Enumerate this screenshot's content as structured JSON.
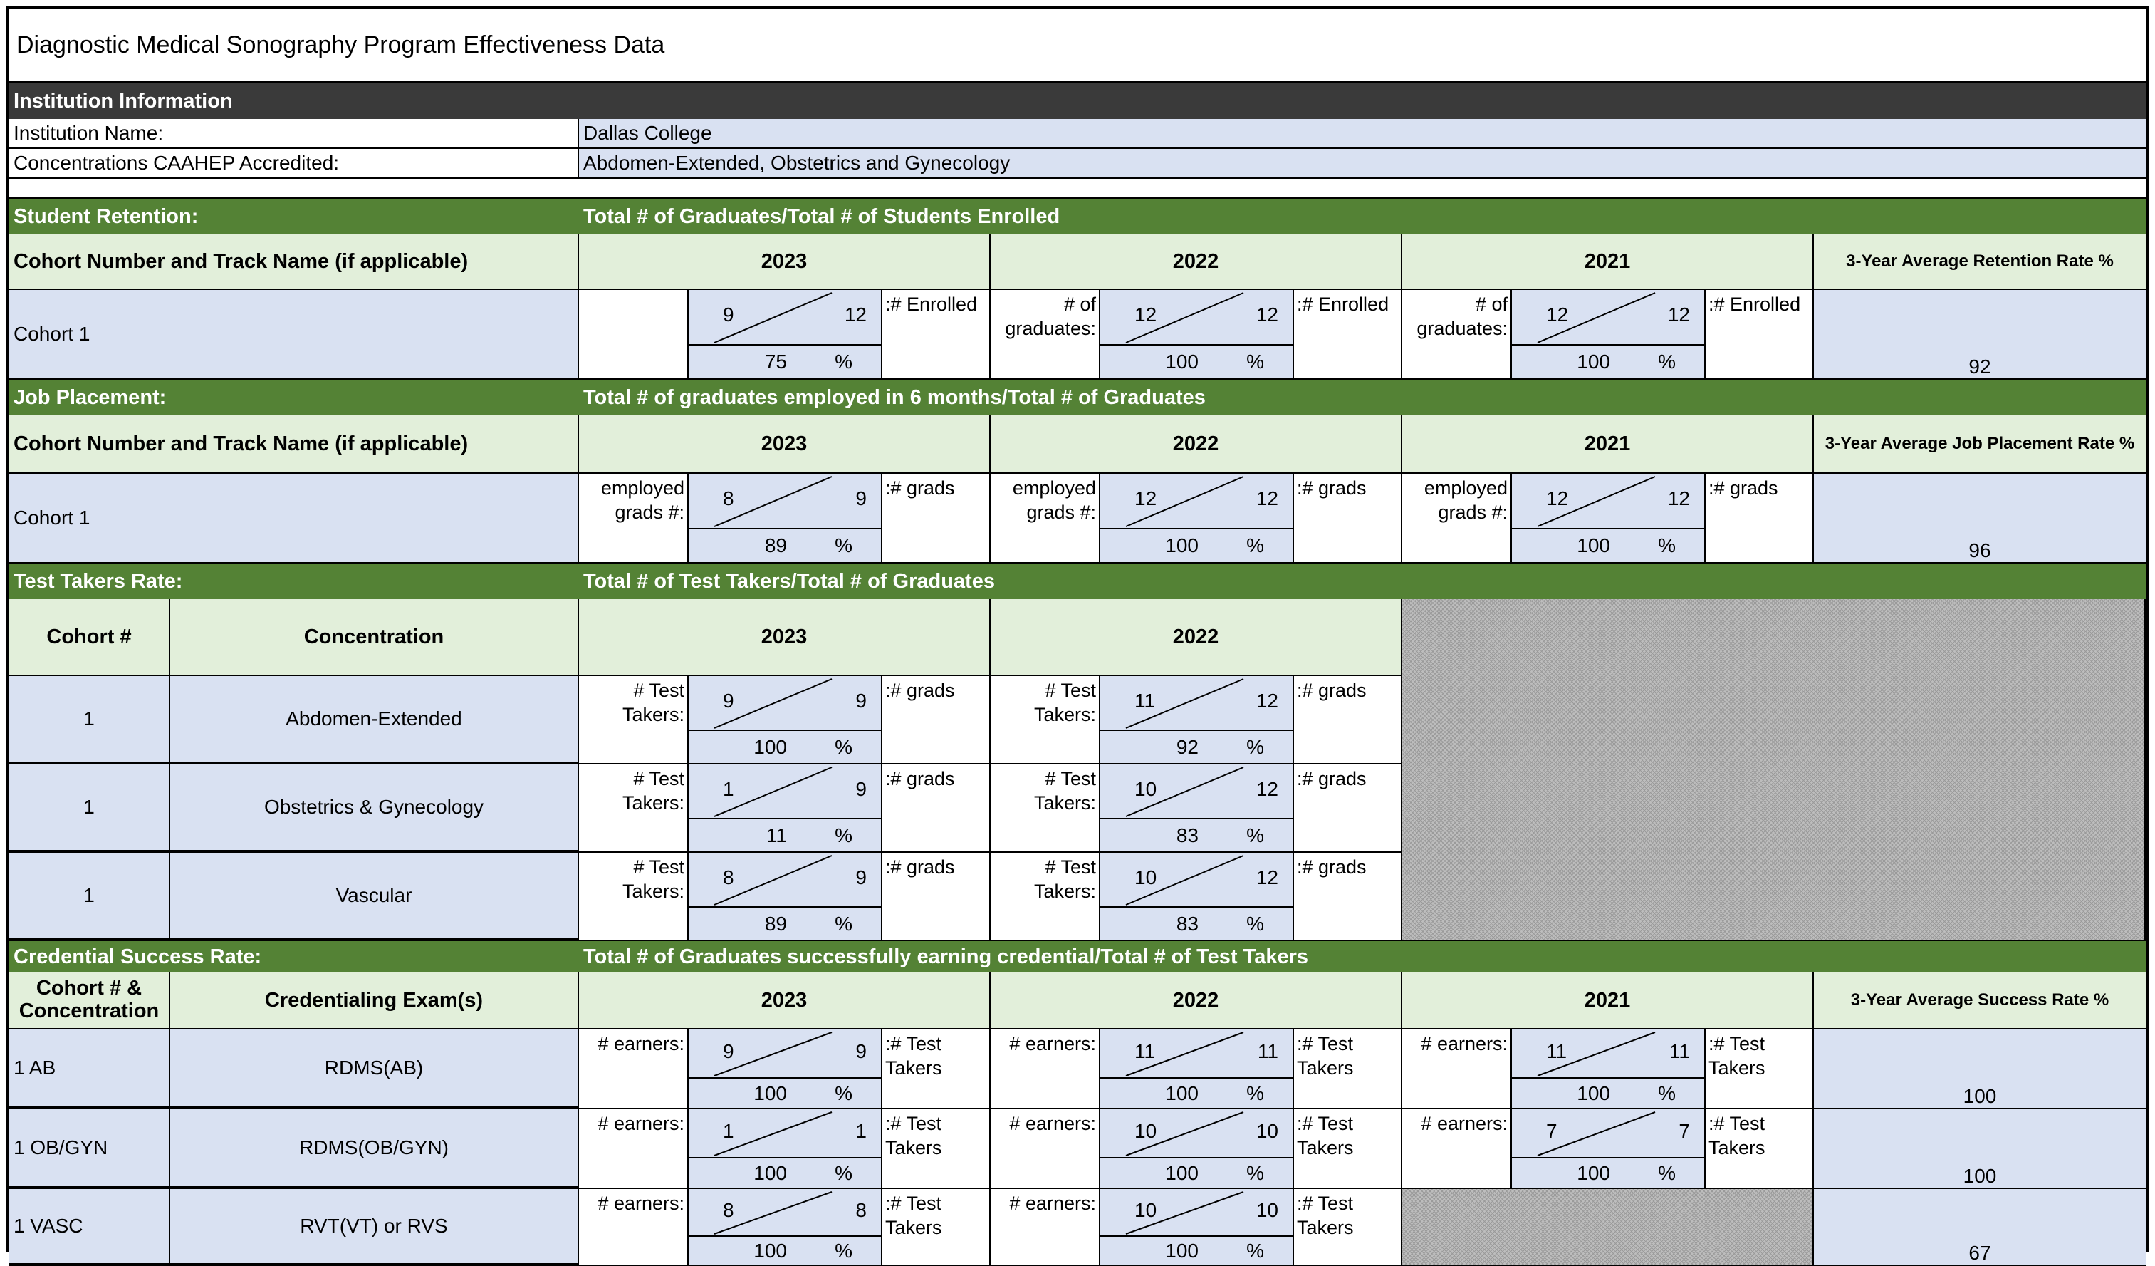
{
  "title": "Diagnostic Medical Sonography Program Effectiveness Data",
  "institution_section": "Institution Information",
  "institution_name_label": "Institution Name:",
  "institution_name": "Dallas College",
  "concentrations_label": "Concentrations CAAHEP Accredited:",
  "concentrations": "Abdomen-Extended, Obstetrics and Gynecology",
  "retention": {
    "label": "Student Retention:",
    "formula": "Total # of Graduates/Total # of Students Enrolled",
    "col_cohort": "Cohort Number and Track Name (if applicable)",
    "years": [
      "2023",
      "2022",
      "2021"
    ],
    "avg_label": "3-Year Average Retention Rate %",
    "rows": [
      {
        "cohort": "Cohort 1",
        "cells": [
          {
            "left": "",
            "num": "9",
            "den": "12",
            "pct": "75",
            "right": ":# Enrolled"
          },
          {
            "left": "# of graduates:",
            "num": "12",
            "den": "12",
            "pct": "100",
            "right": ":# Enrolled"
          },
          {
            "left": "# of graduates:",
            "num": "12",
            "den": "12",
            "pct": "100",
            "right": ":# Enrolled"
          }
        ],
        "avg": "92"
      }
    ]
  },
  "job": {
    "label": "Job Placement:",
    "formula": "Total # of graduates employed in 6 months/Total # of Graduates",
    "col_cohort": "Cohort Number and Track Name (if applicable)",
    "years": [
      "2023",
      "2022",
      "2021"
    ],
    "avg_label": "3-Year Average Job Placement Rate %",
    "rows": [
      {
        "cohort": "Cohort 1",
        "cells": [
          {
            "left": "employed grads #:",
            "num": "8",
            "den": "9",
            "pct": "89",
            "right": ":# grads"
          },
          {
            "left": "employed grads #:",
            "num": "12",
            "den": "12",
            "pct": "100",
            "right": ":# grads"
          },
          {
            "left": "employed grads #:",
            "num": "12",
            "den": "12",
            "pct": "100",
            "right": ":# grads"
          }
        ],
        "avg": "96"
      }
    ]
  },
  "test_takers": {
    "label": "Test Takers Rate:",
    "formula": "Total # of Test Takers/Total # of Graduates",
    "col_cohort": "Cohort #",
    "col_conc": "Concentration",
    "years": [
      "2023",
      "2022"
    ],
    "rows": [
      {
        "cohort": "1",
        "conc": "Abdomen-Extended",
        "cells": [
          {
            "left": "# Test Takers:",
            "num": "9",
            "den": "9",
            "pct": "100",
            "right": ":# grads"
          },
          {
            "left": "# Test Takers:",
            "num": "11",
            "den": "12",
            "pct": "92",
            "right": ":# grads"
          }
        ]
      },
      {
        "cohort": "1",
        "conc": "Obstetrics & Gynecology",
        "cells": [
          {
            "left": "# Test Takers:",
            "num": "1",
            "den": "9",
            "pct": "11",
            "right": ":# grads"
          },
          {
            "left": "# Test Takers:",
            "num": "10",
            "den": "12",
            "pct": "83",
            "right": ":# grads"
          }
        ]
      },
      {
        "cohort": "1",
        "conc": "Vascular",
        "cells": [
          {
            "left": "# Test Takers:",
            "num": "8",
            "den": "9",
            "pct": "89",
            "right": ":# grads"
          },
          {
            "left": "# Test Takers:",
            "num": "10",
            "den": "12",
            "pct": "83",
            "right": ":# grads"
          }
        ]
      }
    ]
  },
  "credential": {
    "label": "Credential Success Rate:",
    "formula": "Total # of Graduates successfully earning credential/Total # of Test Takers",
    "col_cohort": "Cohort # & Concentration",
    "col_exam": "Credentialing Exam(s)",
    "years": [
      "2023",
      "2022",
      "2021"
    ],
    "avg_label": "3-Year Average Success Rate %",
    "rows": [
      {
        "cohort": "1 AB",
        "exam": "RDMS(AB)",
        "cells": [
          {
            "left": "# earners:",
            "num": "9",
            "den": "9",
            "pct": "100",
            "right": ":# Test Takers"
          },
          {
            "left": "# earners:",
            "num": "11",
            "den": "11",
            "pct": "100",
            "right": ":# Test Takers"
          },
          {
            "left": "# earners:",
            "num": "11",
            "den": "11",
            "pct": "100",
            "right": ":# Test Takers"
          }
        ],
        "avg": "100"
      },
      {
        "cohort": "1 OB/GYN",
        "exam": "RDMS(OB/GYN)",
        "cells": [
          {
            "left": "# earners:",
            "num": "1",
            "den": "1",
            "pct": "100",
            "right": ":# Test Takers"
          },
          {
            "left": "# earners:",
            "num": "10",
            "den": "10",
            "pct": "100",
            "right": ":# Test Takers"
          },
          {
            "left": "# earners:",
            "num": "7",
            "den": "7",
            "pct": "100",
            "right": ":# Test Takers"
          }
        ],
        "avg": "100"
      },
      {
        "cohort": "1 VASC",
        "exam": "RVT(VT) or RVS",
        "cells": [
          {
            "left": "# earners:",
            "num": "8",
            "den": "8",
            "pct": "100",
            "right": ":# Test Takers"
          },
          {
            "left": "# earners:",
            "num": "10",
            "den": "10",
            "pct": "100",
            "right": ":# Test Takers"
          }
        ],
        "avg": "67"
      }
    ]
  },
  "pct_symbol": "%"
}
